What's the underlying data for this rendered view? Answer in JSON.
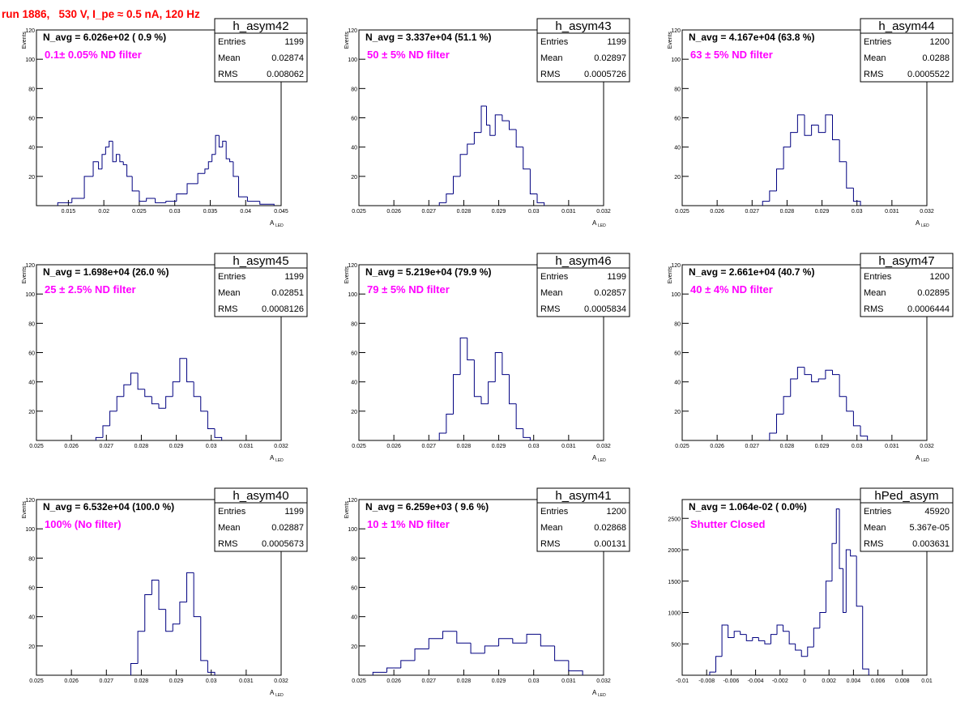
{
  "title": "run 1886,   530 V, I_pe ≈ 0.5 nA, 120 Hz",
  "colors": {
    "title": "#ff0000",
    "annotation": "#ff00ff",
    "histogram": "#000080",
    "frame": "#000000"
  },
  "chart_data": [
    {
      "type": "histogram",
      "name": "h_asym42",
      "stats": {
        "entries_label": "Entries",
        "entries": "1199",
        "mean_label": "Mean",
        "mean": "0.02874",
        "rms_label": "RMS",
        "rms": "0.008062"
      },
      "navg_text": "N_avg = 6.026e+02 ( 0.9 %)",
      "filter_text": "0.1± 0.05% ND filter",
      "xlabel": "A",
      "xlabel_sub": "LED",
      "ylabel": "Events",
      "xlim": [
        0.0105,
        0.045
      ],
      "ylim": [
        0,
        120
      ],
      "xticks": [
        0.015,
        0.02,
        0.025,
        0.03,
        0.035,
        0.04,
        0.045
      ],
      "xtick_labels": [
        "0.015",
        "0.02",
        "0.025",
        "0.03",
        "0.035",
        "0.04",
        "0.045"
      ],
      "yticks": [
        20,
        40,
        60,
        80,
        100,
        120
      ],
      "ytick_labels": [
        "20",
        "40",
        "60",
        "80",
        "100",
        "120"
      ],
      "x": [
        0.0145,
        0.0165,
        0.018,
        0.019,
        0.0195,
        0.02,
        0.0205,
        0.021,
        0.0215,
        0.022,
        0.0225,
        0.023,
        0.0235,
        0.0245,
        0.0255,
        0.0265,
        0.028,
        0.0295,
        0.031,
        0.0325,
        0.034,
        0.0345,
        0.035,
        0.0355,
        0.036,
        0.0365,
        0.037,
        0.0375,
        0.038,
        0.0385,
        0.0395,
        0.041,
        0.043
      ],
      "values": [
        2,
        5,
        20,
        30,
        25,
        35,
        40,
        44,
        30,
        35,
        30,
        28,
        20,
        10,
        3,
        5,
        2,
        3,
        8,
        15,
        22,
        25,
        30,
        35,
        48,
        40,
        44,
        32,
        30,
        20,
        6,
        3,
        1
      ]
    },
    {
      "type": "histogram",
      "name": "h_asym43",
      "stats": {
        "entries_label": "Entries",
        "entries": "1199",
        "mean_label": "Mean",
        "mean": "0.02897",
        "rms_label": "RMS",
        "rms": "0.0005726"
      },
      "navg_text": "N_avg = 3.337e+04 (51.1 %)",
      "filter_text": "50 ± 5% ND filter",
      "xlabel": "A",
      "xlabel_sub": "LED",
      "ylabel": "Events",
      "xlim": [
        0.025,
        0.032
      ],
      "ylim": [
        0,
        120
      ],
      "xticks": [
        0.025,
        0.026,
        0.027,
        0.028,
        0.029,
        0.03,
        0.031,
        0.032
      ],
      "xtick_labels": [
        "0.025",
        "0.026",
        "0.027",
        "0.028",
        "0.029",
        "0.03",
        "0.031",
        "0.032"
      ],
      "yticks": [
        20,
        40,
        60,
        80,
        100,
        120
      ],
      "ytick_labels": [
        "20",
        "40",
        "60",
        "80",
        "100",
        "120"
      ],
      "x": [
        0.0274,
        0.0276,
        0.0278,
        0.028,
        0.0282,
        0.0284,
        0.0286,
        0.0287,
        0.0288,
        0.029,
        0.0292,
        0.0294,
        0.0296,
        0.0298,
        0.03,
        0.0302
      ],
      "values": [
        2,
        8,
        20,
        35,
        42,
        50,
        68,
        55,
        48,
        62,
        58,
        52,
        40,
        25,
        8,
        2
      ]
    },
    {
      "type": "histogram",
      "name": "h_asym44",
      "stats": {
        "entries_label": "Entries",
        "entries": "1200",
        "mean_label": "Mean",
        "mean": "0.0288",
        "rms_label": "RMS",
        "rms": "0.0005522"
      },
      "navg_text": "N_avg = 4.167e+04 (63.8 %)",
      "filter_text": "63 ± 5% ND filter",
      "xlabel": "A",
      "xlabel_sub": "LED",
      "ylabel": "Events",
      "xlim": [
        0.025,
        0.032
      ],
      "ylim": [
        0,
        120
      ],
      "xticks": [
        0.025,
        0.026,
        0.027,
        0.028,
        0.029,
        0.03,
        0.031,
        0.032
      ],
      "xtick_labels": [
        "0.025",
        "0.026",
        "0.027",
        "0.028",
        "0.029",
        "0.03",
        "0.031",
        "0.032"
      ],
      "yticks": [
        20,
        40,
        60,
        80,
        100,
        120
      ],
      "ytick_labels": [
        "20",
        "40",
        "60",
        "80",
        "100",
        "120"
      ],
      "x": [
        0.0274,
        0.0276,
        0.0278,
        0.028,
        0.0282,
        0.0284,
        0.0286,
        0.0288,
        0.029,
        0.0292,
        0.0294,
        0.0296,
        0.0298,
        0.03
      ],
      "values": [
        3,
        10,
        25,
        40,
        50,
        62,
        48,
        55,
        50,
        62,
        45,
        30,
        12,
        3
      ]
    },
    {
      "type": "histogram",
      "name": "h_asym45",
      "stats": {
        "entries_label": "Entries",
        "entries": "1199",
        "mean_label": "Mean",
        "mean": "0.02851",
        "rms_label": "RMS",
        "rms": "0.0008126"
      },
      "navg_text": "N_avg = 1.698e+04 (26.0 %)",
      "filter_text": "25 ± 2.5% ND filter",
      "xlabel": "A",
      "xlabel_sub": "LED",
      "ylabel": "Events",
      "xlim": [
        0.025,
        0.032
      ],
      "ylim": [
        0,
        120
      ],
      "xticks": [
        0.025,
        0.026,
        0.027,
        0.028,
        0.029,
        0.03,
        0.031,
        0.032
      ],
      "xtick_labels": [
        "0.025",
        "0.026",
        "0.027",
        "0.028",
        "0.029",
        "0.03",
        "0.031",
        "0.032"
      ],
      "yticks": [
        20,
        40,
        60,
        80,
        100,
        120
      ],
      "ytick_labels": [
        "20",
        "40",
        "60",
        "80",
        "100",
        "120"
      ],
      "x": [
        0.0268,
        0.027,
        0.0272,
        0.0274,
        0.0276,
        0.0278,
        0.028,
        0.0282,
        0.0284,
        0.0286,
        0.0288,
        0.029,
        0.0292,
        0.0294,
        0.0296,
        0.0298,
        0.03,
        0.0302
      ],
      "values": [
        2,
        10,
        20,
        30,
        38,
        46,
        35,
        30,
        25,
        22,
        30,
        40,
        56,
        40,
        30,
        20,
        8,
        2
      ]
    },
    {
      "type": "histogram",
      "name": "h_asym46",
      "stats": {
        "entries_label": "Entries",
        "entries": "1199",
        "mean_label": "Mean",
        "mean": "0.02857",
        "rms_label": "RMS",
        "rms": "0.0005834"
      },
      "navg_text": "N_avg = 5.219e+04 (79.9 %)",
      "filter_text": "79 ± 5% ND filter",
      "xlabel": "A",
      "xlabel_sub": "LED",
      "ylabel": "Events",
      "xlim": [
        0.025,
        0.032
      ],
      "ylim": [
        0,
        120
      ],
      "xticks": [
        0.025,
        0.026,
        0.027,
        0.028,
        0.029,
        0.03,
        0.031,
        0.032
      ],
      "xtick_labels": [
        "0.025",
        "0.026",
        "0.027",
        "0.028",
        "0.029",
        "0.03",
        "0.031",
        "0.032"
      ],
      "yticks": [
        20,
        40,
        60,
        80,
        100,
        120
      ],
      "ytick_labels": [
        "20",
        "40",
        "60",
        "80",
        "100",
        "120"
      ],
      "x": [
        0.0274,
        0.0276,
        0.0278,
        0.028,
        0.0282,
        0.0284,
        0.0286,
        0.0288,
        0.029,
        0.0292,
        0.0294,
        0.0296,
        0.0298
      ],
      "values": [
        5,
        18,
        45,
        70,
        55,
        30,
        25,
        40,
        60,
        45,
        25,
        8,
        2
      ]
    },
    {
      "type": "histogram",
      "name": "h_asym47",
      "stats": {
        "entries_label": "Entries",
        "entries": "1200",
        "mean_label": "Mean",
        "mean": "0.02895",
        "rms_label": "RMS",
        "rms": "0.0006444"
      },
      "navg_text": "N_avg = 2.661e+04 (40.7 %)",
      "filter_text": "40 ± 4% ND filter",
      "xlabel": "A",
      "xlabel_sub": "LED",
      "ylabel": "Events",
      "xlim": [
        0.025,
        0.032
      ],
      "ylim": [
        0,
        120
      ],
      "xticks": [
        0.025,
        0.026,
        0.027,
        0.028,
        0.029,
        0.03,
        0.031,
        0.032
      ],
      "xtick_labels": [
        "0.025",
        "0.026",
        "0.027",
        "0.028",
        "0.029",
        "0.03",
        "0.031",
        "0.032"
      ],
      "yticks": [
        20,
        40,
        60,
        80,
        100,
        120
      ],
      "ytick_labels": [
        "20",
        "40",
        "60",
        "80",
        "100",
        "120"
      ],
      "x": [
        0.0276,
        0.0278,
        0.028,
        0.0282,
        0.0284,
        0.0286,
        0.0288,
        0.029,
        0.0292,
        0.0294,
        0.0296,
        0.0298,
        0.03,
        0.0302
      ],
      "values": [
        5,
        18,
        30,
        42,
        50,
        45,
        40,
        42,
        48,
        45,
        30,
        20,
        10,
        3
      ]
    },
    {
      "type": "histogram",
      "name": "h_asym40",
      "stats": {
        "entries_label": "Entries",
        "entries": "1199",
        "mean_label": "Mean",
        "mean": "0.02887",
        "rms_label": "RMS",
        "rms": "0.0005673"
      },
      "navg_text": "N_avg = 6.532e+04 (100.0 %)",
      "filter_text": "100% (No filter)",
      "xlabel": "A",
      "xlabel_sub": "LED",
      "ylabel": "Events",
      "xlim": [
        0.025,
        0.032
      ],
      "ylim": [
        0,
        120
      ],
      "xticks": [
        0.025,
        0.026,
        0.027,
        0.028,
        0.029,
        0.03,
        0.031,
        0.032
      ],
      "xtick_labels": [
        "0.025",
        "0.026",
        "0.027",
        "0.028",
        "0.029",
        "0.03",
        "0.031",
        "0.032"
      ],
      "yticks": [
        20,
        40,
        60,
        80,
        100,
        120
      ],
      "ytick_labels": [
        "20",
        "40",
        "60",
        "80",
        "100",
        "120"
      ],
      "x": [
        0.0278,
        0.028,
        0.0282,
        0.0284,
        0.0286,
        0.0288,
        0.029,
        0.0292,
        0.0294,
        0.0296,
        0.0298,
        0.03
      ],
      "values": [
        8,
        30,
        55,
        65,
        45,
        30,
        35,
        50,
        70,
        40,
        10,
        2
      ]
    },
    {
      "type": "histogram",
      "name": "h_asym41",
      "stats": {
        "entries_label": "Entries",
        "entries": "1200",
        "mean_label": "Mean",
        "mean": "0.02868",
        "rms_label": "RMS",
        "rms": "0.00131"
      },
      "navg_text": "N_avg = 6.259e+03 ( 9.6 %)",
      "filter_text": "10 ± 1% ND filter",
      "xlabel": "A",
      "xlabel_sub": "LED",
      "ylabel": "Events",
      "xlim": [
        0.025,
        0.032
      ],
      "ylim": [
        0,
        120
      ],
      "xticks": [
        0.025,
        0.026,
        0.027,
        0.028,
        0.029,
        0.03,
        0.031,
        0.032
      ],
      "xtick_labels": [
        "0.025",
        "0.026",
        "0.027",
        "0.028",
        "0.029",
        "0.03",
        "0.031",
        "0.032"
      ],
      "yticks": [
        20,
        40,
        60,
        80,
        100,
        120
      ],
      "ytick_labels": [
        "20",
        "40",
        "60",
        "80",
        "100",
        "120"
      ],
      "x": [
        0.0256,
        0.026,
        0.0264,
        0.0268,
        0.0272,
        0.0276,
        0.028,
        0.0284,
        0.0288,
        0.0292,
        0.0296,
        0.03,
        0.0304,
        0.0308,
        0.0312
      ],
      "values": [
        2,
        5,
        10,
        18,
        25,
        30,
        22,
        15,
        20,
        25,
        22,
        28,
        20,
        10,
        3
      ]
    },
    {
      "type": "histogram",
      "name": "hPed_asym",
      "stats": {
        "entries_label": "Entries",
        "entries": "45920",
        "mean_label": "Mean",
        "mean": "5.367e-05",
        "rms_label": "RMS",
        "rms": "0.003631"
      },
      "navg_text": "N_avg = 1.064e-02 ( 0.0%)",
      "filter_text": "Shutter Closed",
      "xlabel": "",
      "xlabel_sub": "",
      "ylabel": "",
      "xlim": [
        -0.01,
        0.01
      ],
      "ylim": [
        0,
        2800
      ],
      "xticks": [
        -0.01,
        -0.008,
        -0.006,
        -0.004,
        -0.002,
        0,
        0.002,
        0.004,
        0.006,
        0.008,
        0.01
      ],
      "xtick_labels": [
        "-0.01",
        "-0.008",
        "-0.006",
        "-0.004",
        "-0.002",
        "0",
        "0.002",
        "0.004",
        "0.006",
        "0.008",
        "0.01"
      ],
      "yticks": [
        500,
        1000,
        1500,
        2000,
        2500
      ],
      "ytick_labels": [
        "500",
        "1000",
        "1500",
        "2000",
        "2500"
      ],
      "x": [
        -0.0075,
        -0.007,
        -0.0065,
        -0.006,
        -0.0055,
        -0.005,
        -0.0045,
        -0.004,
        -0.0035,
        -0.003,
        -0.0025,
        -0.002,
        -0.0015,
        -0.001,
        -0.0005,
        0,
        0.0005,
        0.001,
        0.0015,
        0.002,
        0.0025,
        0.0027,
        0.003,
        0.0033,
        0.0035,
        0.004,
        0.0045,
        0.005
      ],
      "values": [
        50,
        300,
        800,
        600,
        700,
        650,
        550,
        600,
        550,
        500,
        650,
        800,
        700,
        500,
        400,
        300,
        450,
        750,
        1000,
        1500,
        2100,
        2650,
        1700,
        1000,
        2000,
        1900,
        1100,
        100
      ]
    }
  ]
}
